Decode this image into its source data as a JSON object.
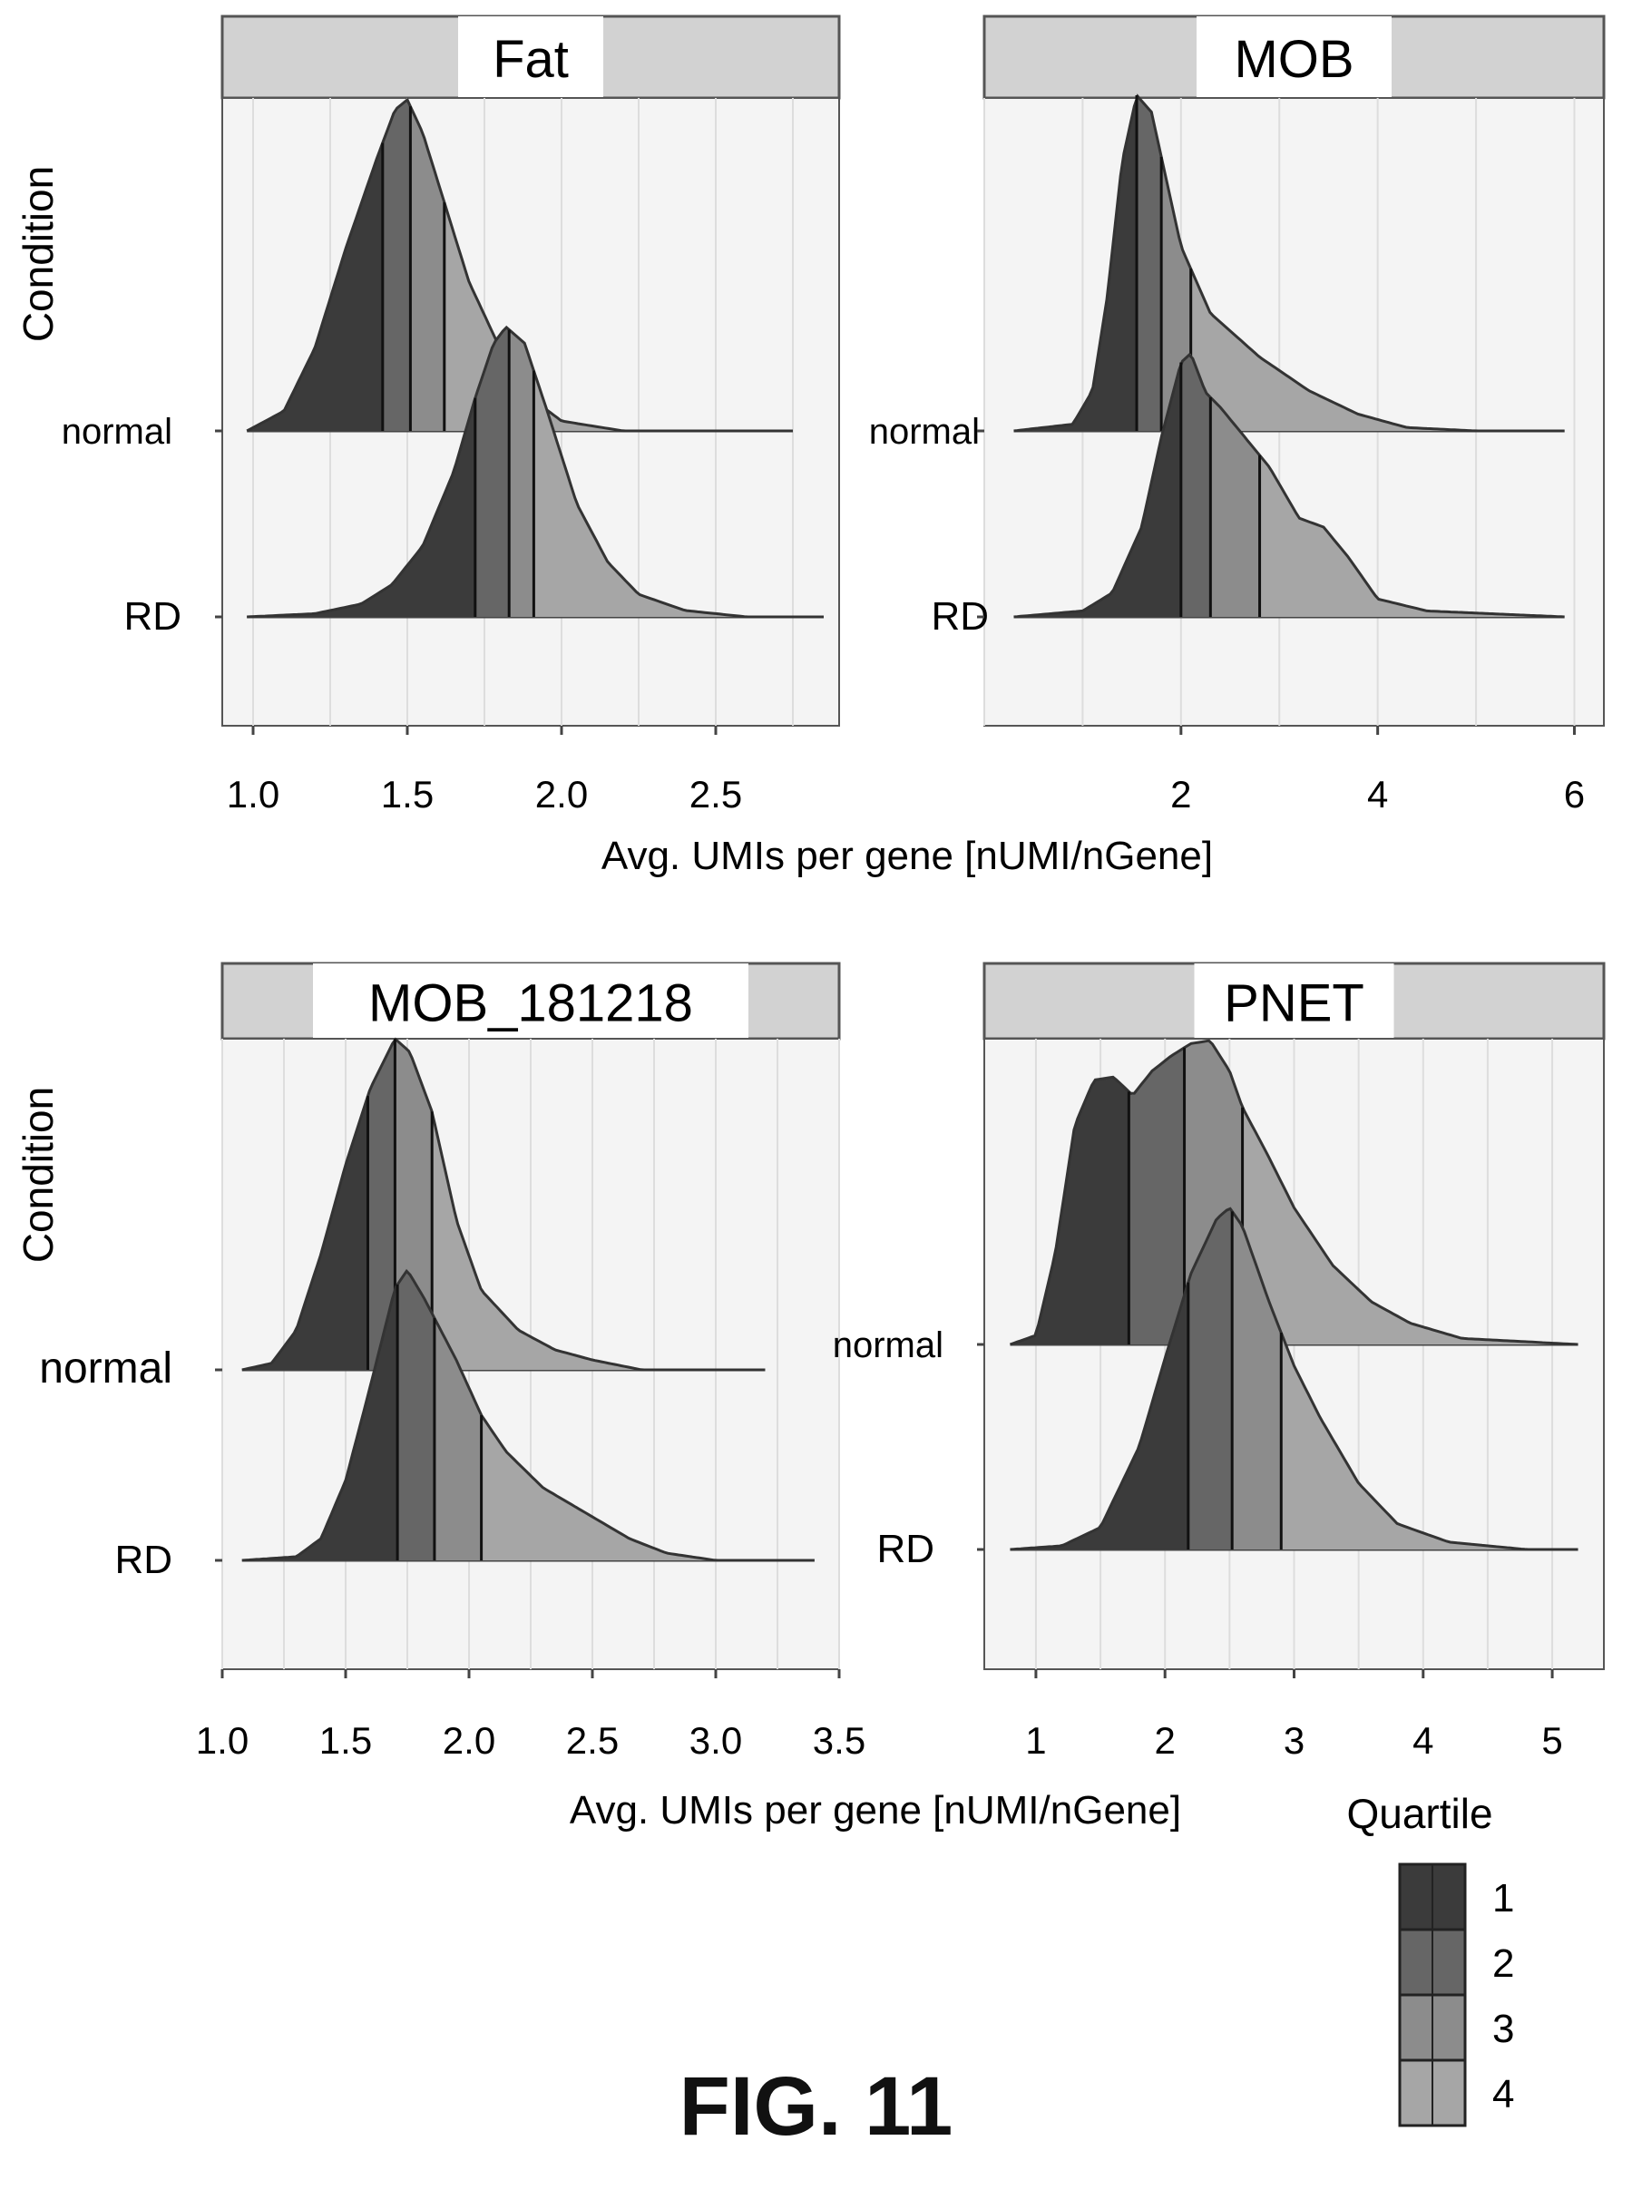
{
  "figure_label": "FIG. 11",
  "y_axis_label": "Condition",
  "x_axis_label": "Avg. UMIs per gene [nUMI/nGene]",
  "row_labels": [
    "normal",
    "RD"
  ],
  "legend": {
    "title": "Quartile",
    "items": [
      "1",
      "2",
      "3",
      "4"
    ]
  },
  "colors": {
    "q1": "#3b3b3b",
    "q2": "#666666",
    "q3": "#8c8c8c",
    "q4": "#a6a6a6",
    "strip": "#d2d2d2",
    "panel_bg": "#f4f4f4",
    "grid": "#dddddd"
  },
  "chart_data": [
    {
      "type": "area",
      "title": "Fat",
      "xlabel": "Avg. UMIs per gene [nUMI/nGene]",
      "ylabel": "Condition",
      "xlim": [
        0.9,
        2.9
      ],
      "x_ticks": [
        1.0,
        1.5,
        2.0,
        2.5
      ],
      "x_tick_labels": [
        "1.0",
        "1.5",
        "2.0",
        "2.5"
      ],
      "series": [
        {
          "name": "normal",
          "x_range": [
            0.98,
            2.75
          ],
          "quartiles": [
            1.42,
            1.51,
            1.62
          ],
          "density": [
            [
              0.98,
              0.0
            ],
            [
              1.1,
              0.06
            ],
            [
              1.2,
              0.25
            ],
            [
              1.3,
              0.55
            ],
            [
              1.4,
              0.82
            ],
            [
              1.46,
              0.97
            ],
            [
              1.5,
              1.0
            ],
            [
              1.55,
              0.9
            ],
            [
              1.6,
              0.75
            ],
            [
              1.65,
              0.6
            ],
            [
              1.7,
              0.45
            ],
            [
              1.8,
              0.25
            ],
            [
              1.9,
              0.1
            ],
            [
              2.0,
              0.03
            ],
            [
              2.2,
              0.0
            ],
            [
              2.75,
              0.0
            ]
          ]
        },
        {
          "name": "RD",
          "x_range": [
            0.98,
            2.85
          ],
          "quartiles": [
            1.72,
            1.83,
            1.91
          ],
          "density": [
            [
              0.98,
              0.0
            ],
            [
              1.2,
              0.01
            ],
            [
              1.35,
              0.04
            ],
            [
              1.45,
              0.1
            ],
            [
              1.55,
              0.22
            ],
            [
              1.65,
              0.45
            ],
            [
              1.72,
              0.68
            ],
            [
              1.78,
              0.85
            ],
            [
              1.82,
              0.9
            ],
            [
              1.88,
              0.85
            ],
            [
              1.95,
              0.65
            ],
            [
              2.05,
              0.35
            ],
            [
              2.15,
              0.17
            ],
            [
              2.25,
              0.07
            ],
            [
              2.4,
              0.02
            ],
            [
              2.6,
              0.0
            ],
            [
              2.85,
              0.0
            ]
          ]
        }
      ]
    },
    {
      "type": "area",
      "title": "MOB",
      "xlabel": "Avg. UMIs per gene [nUMI/nGene]",
      "ylabel": "Condition",
      "xlim": [
        0.0,
        6.3
      ],
      "x_ticks": [
        2,
        4,
        6
      ],
      "x_tick_labels": [
        "2",
        "4",
        "6"
      ],
      "series": [
        {
          "name": "normal",
          "x_range": [
            0.3,
            5.9
          ],
          "quartiles": [
            1.55,
            1.8,
            2.1
          ],
          "density": [
            [
              0.3,
              0.0
            ],
            [
              0.9,
              0.02
            ],
            [
              1.1,
              0.12
            ],
            [
              1.25,
              0.4
            ],
            [
              1.4,
              0.8
            ],
            [
              1.55,
              1.0
            ],
            [
              1.7,
              0.95
            ],
            [
              1.85,
              0.75
            ],
            [
              2.0,
              0.55
            ],
            [
              2.3,
              0.35
            ],
            [
              2.8,
              0.22
            ],
            [
              3.3,
              0.12
            ],
            [
              3.8,
              0.05
            ],
            [
              4.3,
              0.01
            ],
            [
              5.0,
              0.0
            ],
            [
              5.9,
              0.0
            ]
          ]
        },
        {
          "name": "RD",
          "x_range": [
            0.3,
            5.9
          ],
          "quartiles": [
            2.0,
            2.3,
            2.8
          ],
          "density": [
            [
              0.3,
              0.0
            ],
            [
              1.0,
              0.02
            ],
            [
              1.3,
              0.08
            ],
            [
              1.6,
              0.3
            ],
            [
              1.8,
              0.6
            ],
            [
              2.0,
              0.85
            ],
            [
              2.1,
              0.88
            ],
            [
              2.25,
              0.75
            ],
            [
              2.4,
              0.7
            ],
            [
              2.6,
              0.62
            ],
            [
              2.9,
              0.5
            ],
            [
              3.2,
              0.33
            ],
            [
              3.45,
              0.3
            ],
            [
              3.7,
              0.2
            ],
            [
              4.0,
              0.06
            ],
            [
              4.5,
              0.02
            ],
            [
              5.9,
              0.0
            ]
          ]
        }
      ]
    },
    {
      "type": "area",
      "title": "MOB_181218",
      "xlabel": "Avg. UMIs per gene [nUMI/nGene]",
      "ylabel": "Condition",
      "xlim": [
        1.0,
        3.5
      ],
      "x_ticks": [
        1.0,
        1.5,
        2.0,
        2.5,
        3.0,
        3.5
      ],
      "x_tick_labels": [
        "1.0",
        "1.5",
        "2.0",
        "2.5",
        "3.0",
        "3.5"
      ],
      "series": [
        {
          "name": "normal",
          "x_range": [
            1.08,
            3.2
          ],
          "quartiles": [
            1.59,
            1.7,
            1.85
          ],
          "density": [
            [
              1.08,
              0.0
            ],
            [
              1.2,
              0.02
            ],
            [
              1.3,
              0.12
            ],
            [
              1.4,
              0.35
            ],
            [
              1.5,
              0.62
            ],
            [
              1.6,
              0.85
            ],
            [
              1.7,
              1.0
            ],
            [
              1.76,
              0.96
            ],
            [
              1.85,
              0.78
            ],
            [
              1.95,
              0.45
            ],
            [
              2.05,
              0.24
            ],
            [
              2.2,
              0.12
            ],
            [
              2.35,
              0.06
            ],
            [
              2.5,
              0.03
            ],
            [
              2.7,
              0.0
            ],
            [
              3.2,
              0.0
            ]
          ]
        },
        {
          "name": "RD",
          "x_range": [
            1.08,
            3.4
          ],
          "quartiles": [
            1.71,
            1.86,
            2.05
          ],
          "density": [
            [
              1.08,
              0.0
            ],
            [
              1.3,
              0.01
            ],
            [
              1.4,
              0.06
            ],
            [
              1.5,
              0.22
            ],
            [
              1.6,
              0.48
            ],
            [
              1.7,
              0.75
            ],
            [
              1.75,
              0.8
            ],
            [
              1.82,
              0.72
            ],
            [
              1.95,
              0.55
            ],
            [
              2.05,
              0.4
            ],
            [
              2.15,
              0.3
            ],
            [
              2.3,
              0.2
            ],
            [
              2.5,
              0.12
            ],
            [
              2.65,
              0.06
            ],
            [
              2.8,
              0.02
            ],
            [
              3.0,
              0.0
            ],
            [
              3.4,
              0.0
            ]
          ]
        }
      ]
    },
    {
      "type": "area",
      "title": "PNET",
      "xlabel": "Avg. UMIs per gene [nUMI/nGene]",
      "ylabel": "Condition",
      "xlim": [
        0.6,
        5.4
      ],
      "x_ticks": [
        1,
        2,
        3,
        4,
        5
      ],
      "x_tick_labels": [
        "1",
        "2",
        "3",
        "4",
        "5"
      ],
      "series": [
        {
          "name": "normal",
          "x_range": [
            0.8,
            5.2
          ],
          "quartiles": [
            1.72,
            2.15,
            2.6
          ],
          "density": [
            [
              0.8,
              0.0
            ],
            [
              1.0,
              0.03
            ],
            [
              1.15,
              0.3
            ],
            [
              1.3,
              0.72
            ],
            [
              1.45,
              0.87
            ],
            [
              1.6,
              0.88
            ],
            [
              1.75,
              0.82
            ],
            [
              1.9,
              0.9
            ],
            [
              2.05,
              0.95
            ],
            [
              2.2,
              0.99
            ],
            [
              2.35,
              1.0
            ],
            [
              2.5,
              0.9
            ],
            [
              2.6,
              0.78
            ],
            [
              2.8,
              0.62
            ],
            [
              3.0,
              0.45
            ],
            [
              3.3,
              0.26
            ],
            [
              3.6,
              0.14
            ],
            [
              3.9,
              0.07
            ],
            [
              4.3,
              0.02
            ],
            [
              5.2,
              0.0
            ]
          ]
        },
        {
          "name": "RD",
          "x_range": [
            0.8,
            5.2
          ],
          "quartiles": [
            2.18,
            2.52,
            2.9
          ],
          "density": [
            [
              0.8,
              0.0
            ],
            [
              1.2,
              0.01
            ],
            [
              1.5,
              0.06
            ],
            [
              1.8,
              0.28
            ],
            [
              2.0,
              0.52
            ],
            [
              2.2,
              0.75
            ],
            [
              2.4,
              0.9
            ],
            [
              2.5,
              0.93
            ],
            [
              2.6,
              0.88
            ],
            [
              2.8,
              0.68
            ],
            [
              3.0,
              0.5
            ],
            [
              3.2,
              0.36
            ],
            [
              3.5,
              0.18
            ],
            [
              3.8,
              0.07
            ],
            [
              4.2,
              0.02
            ],
            [
              4.8,
              0.0
            ],
            [
              5.2,
              0.0
            ]
          ]
        }
      ]
    }
  ]
}
